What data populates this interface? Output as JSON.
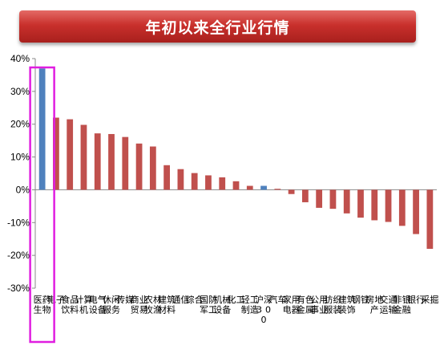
{
  "title": "年初以来全行业行情",
  "colors": {
    "bar_default": "#c0504d",
    "bar_highlight": "#4f81bd",
    "highlight_box": "#e01ee0",
    "axis": "#888888"
  },
  "chart_data": {
    "type": "bar",
    "title": "年初以来全行业行情",
    "xlabel": "",
    "ylabel": "",
    "ylim": [
      -30,
      40
    ],
    "yticks": [
      {
        "value": 40,
        "label": "40%"
      },
      {
        "value": 30,
        "label": "30%"
      },
      {
        "value": 20,
        "label": "20%"
      },
      {
        "value": 10,
        "label": "10%"
      },
      {
        "value": 0,
        "label": "0%"
      },
      {
        "value": -10,
        "label": "-10%"
      },
      {
        "value": -20,
        "label": "-20%"
      },
      {
        "value": -30,
        "label": "-30%"
      }
    ],
    "grid": false,
    "legend": "none",
    "categories": [
      "医药生物",
      "电子",
      "食品饮料",
      "计算机",
      "电气设备",
      "休闲服务",
      "传媒",
      "商业贸易",
      "农林牧渔",
      "建筑材料",
      "通信",
      "综合",
      "国防军工",
      "机械设备",
      "化工",
      "轻工制造",
      "沪深300",
      "汽车",
      "家用电器",
      "有色金属",
      "公用事业",
      "纺织服装",
      "建筑装饰",
      "钢铁",
      "房地产",
      "交通运输",
      "非银金融",
      "银行",
      "采掘"
    ],
    "values": [
      37,
      22,
      21.5,
      19.8,
      17.2,
      17,
      16.1,
      14.1,
      13.2,
      7.5,
      6.3,
      5.1,
      4.4,
      3.8,
      2.6,
      1.2,
      1.2,
      0.3,
      -1.3,
      -3.8,
      -5.5,
      -5.8,
      -7.2,
      -8.5,
      -9.3,
      -9.8,
      -11,
      -13.5,
      -18
    ]
  }
}
